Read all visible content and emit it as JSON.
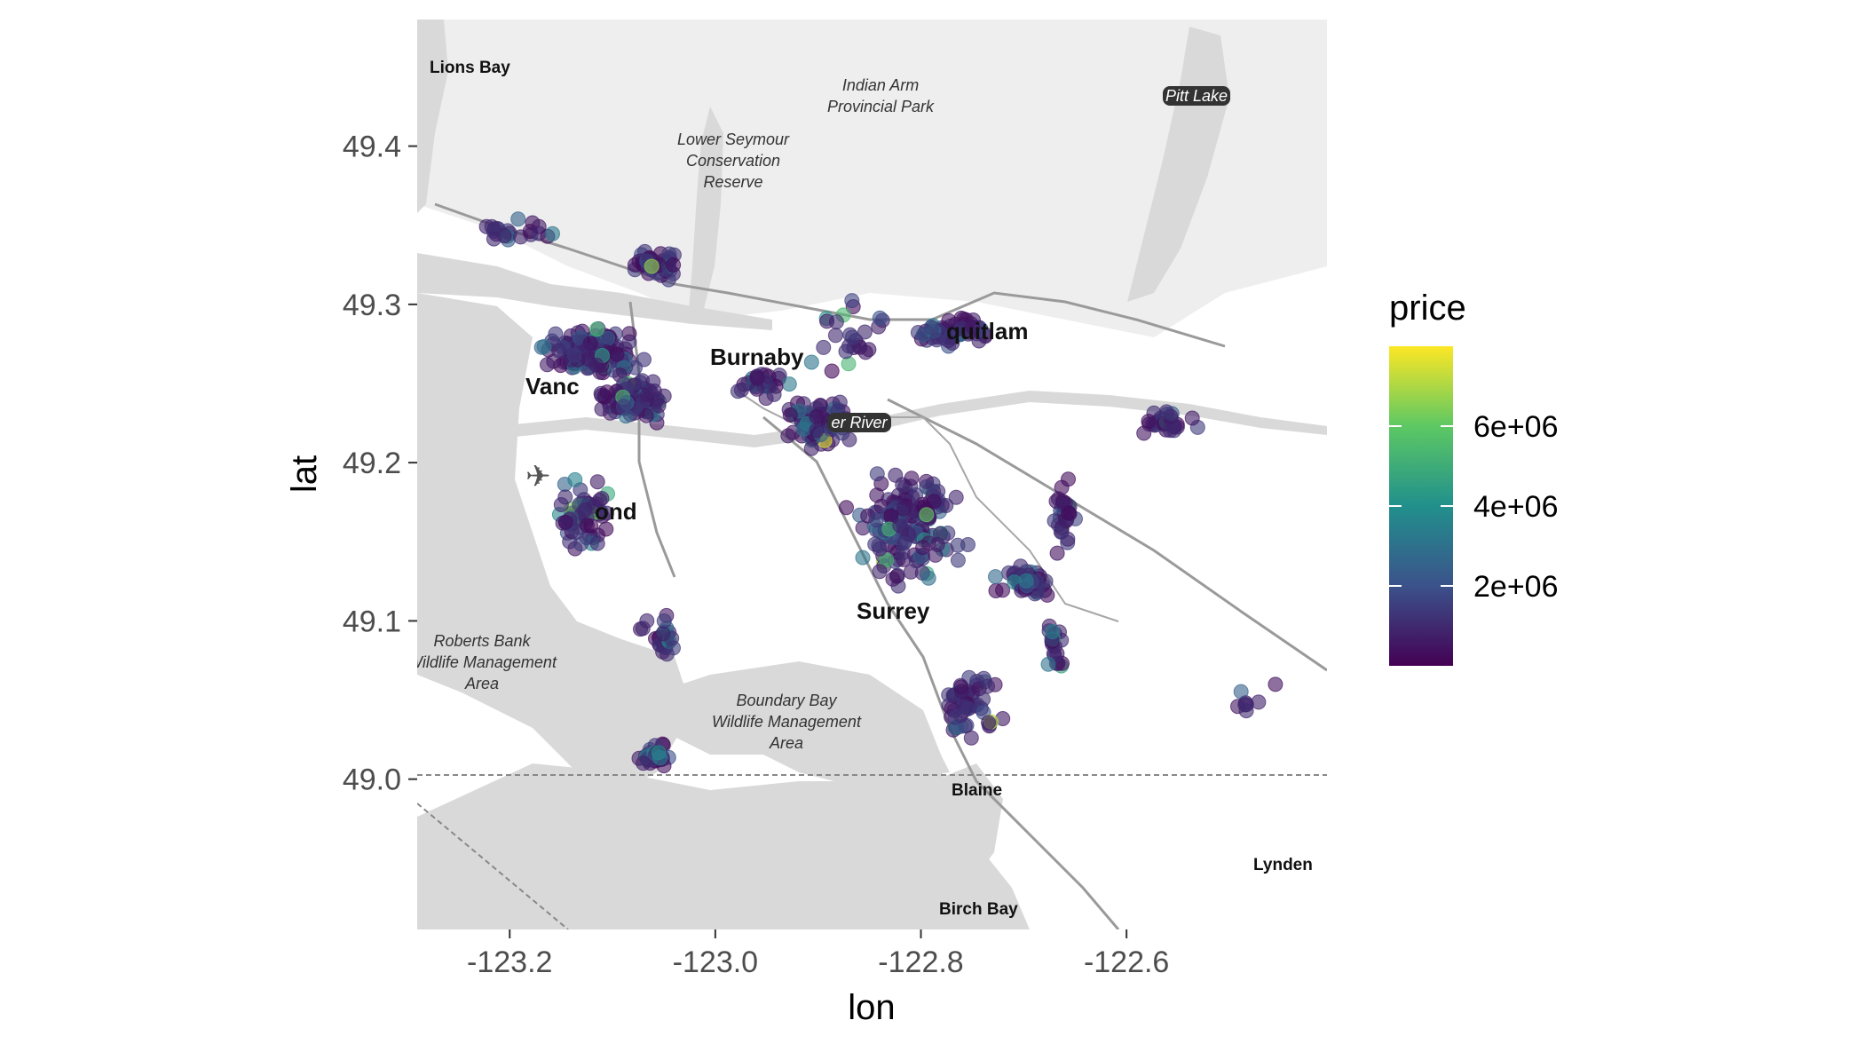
{
  "chart_data": {
    "type": "scatter",
    "xlabel": "lon",
    "ylabel": "lat",
    "xlim": [
      -123.29,
      -122.405
    ],
    "ylim": [
      48.905,
      49.48
    ],
    "x_ticks": [
      {
        "value": -123.2,
        "label": "-123.2"
      },
      {
        "value": -123.0,
        "label": "-123.0"
      },
      {
        "value": -122.8,
        "label": "-122.8"
      },
      {
        "value": -122.6,
        "label": "-122.6"
      }
    ],
    "y_ticks": [
      {
        "value": 49.0,
        "label": "49.0"
      },
      {
        "value": 49.1,
        "label": "49.1"
      },
      {
        "value": 49.2,
        "label": "49.2"
      },
      {
        "value": 49.3,
        "label": "49.3"
      },
      {
        "value": 49.4,
        "label": "49.4"
      }
    ],
    "grid": false,
    "basemap": true,
    "color_scale": {
      "title": "price",
      "palette": "viridis",
      "colors": [
        "#440154",
        "#3b528b",
        "#21908c",
        "#5dc863",
        "#fde725"
      ],
      "min": 0,
      "max": 8000000,
      "breaks": [
        {
          "value": 2000000,
          "label": "2e+06"
        },
        {
          "value": 4000000,
          "label": "4e+06"
        },
        {
          "value": 6000000,
          "label": "6e+06"
        }
      ],
      "legend_position": "right"
    },
    "clusters": [
      {
        "lon": -123.12,
        "lat": 49.27,
        "rx": 0.055,
        "ry": 0.018,
        "n": 170
      },
      {
        "lon": -123.08,
        "lat": 49.24,
        "rx": 0.045,
        "ry": 0.02,
        "n": 90
      },
      {
        "lon": -123.06,
        "lat": 49.325,
        "rx": 0.03,
        "ry": 0.013,
        "n": 45
      },
      {
        "lon": -123.13,
        "lat": 49.165,
        "rx": 0.035,
        "ry": 0.03,
        "n": 65
      },
      {
        "lon": -122.9,
        "lat": 49.225,
        "rx": 0.045,
        "ry": 0.018,
        "n": 80
      },
      {
        "lon": -122.95,
        "lat": 49.25,
        "rx": 0.04,
        "ry": 0.012,
        "n": 30
      },
      {
        "lon": -122.77,
        "lat": 49.283,
        "rx": 0.04,
        "ry": 0.012,
        "n": 55
      },
      {
        "lon": -122.81,
        "lat": 49.16,
        "rx": 0.07,
        "ry": 0.045,
        "n": 160
      },
      {
        "lon": -122.7,
        "lat": 49.125,
        "rx": 0.035,
        "ry": 0.012,
        "n": 50
      },
      {
        "lon": -122.66,
        "lat": 49.165,
        "rx": 0.015,
        "ry": 0.03,
        "n": 30
      },
      {
        "lon": -122.56,
        "lat": 49.225,
        "rx": 0.04,
        "ry": 0.01,
        "n": 30
      },
      {
        "lon": -122.75,
        "lat": 49.05,
        "rx": 0.035,
        "ry": 0.03,
        "n": 55
      },
      {
        "lon": -123.06,
        "lat": 49.015,
        "rx": 0.02,
        "ry": 0.015,
        "n": 30
      },
      {
        "lon": -123.05,
        "lat": 49.09,
        "rx": 0.025,
        "ry": 0.02,
        "n": 25
      },
      {
        "lon": -123.2,
        "lat": 49.345,
        "rx": 0.06,
        "ry": 0.01,
        "n": 22
      },
      {
        "lon": -122.67,
        "lat": 49.08,
        "rx": 0.015,
        "ry": 0.03,
        "n": 20
      },
      {
        "lon": -122.87,
        "lat": 49.28,
        "rx": 0.05,
        "ry": 0.03,
        "n": 25
      },
      {
        "lon": -122.48,
        "lat": 49.05,
        "rx": 0.03,
        "ry": 0.015,
        "n": 8
      }
    ],
    "annotations": []
  },
  "map_labels": {
    "lions_bay": "Lions Bay",
    "indian_arm": [
      "Indian Arm",
      "Provincial Park"
    ],
    "lower_seymour": [
      "Lower Seymour",
      "Conservation",
      "Reserve"
    ],
    "pitt_lake": "Pitt Lake",
    "burnaby": "Burnaby",
    "vancouver_partial": "Vanc",
    "coquitlam_partial": "quitlam",
    "fraser_partial": "er River",
    "richmond_partial": "ond",
    "roberts_bank": [
      "Roberts Bank",
      "Wildlife Management",
      "Area"
    ],
    "boundary_bay": [
      "Boundary Bay",
      "Wildlife Management",
      "Area"
    ],
    "surrey": "Surrey",
    "blaine": "Blaine",
    "lynden": "Lynden",
    "birch_bay": "Birch Bay"
  }
}
